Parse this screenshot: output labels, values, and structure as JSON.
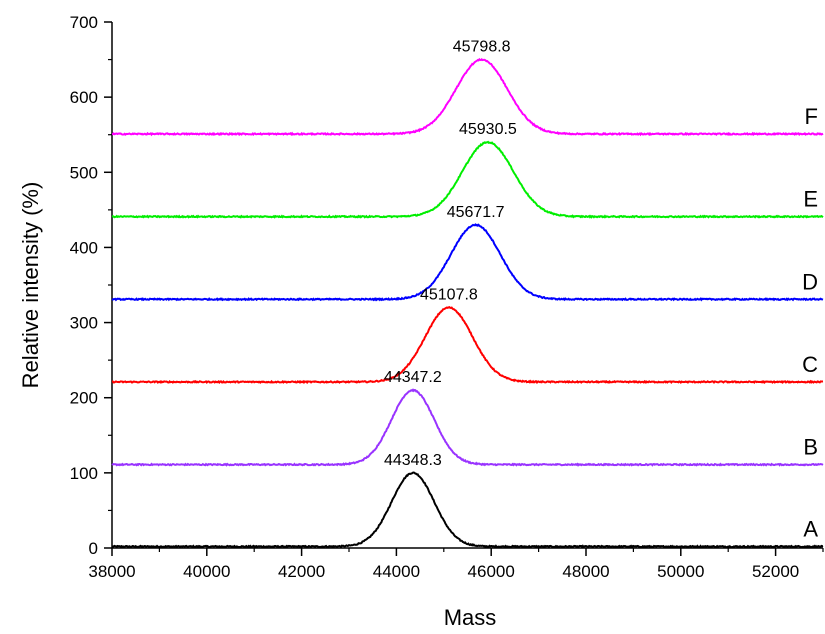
{
  "chart_data": {
    "type": "line",
    "title": "",
    "xlabel": "Mass",
    "ylabel": "Relative intensity (%)",
    "xlim": [
      38000,
      53000
    ],
    "ylim": [
      0,
      700
    ],
    "x_ticks": [
      38000,
      40000,
      42000,
      44000,
      46000,
      48000,
      50000,
      52000
    ],
    "x_tick_labels": [
      "38000",
      "40000",
      "42000",
      "44000",
      "46000",
      "48000",
      "50000",
      "52000"
    ],
    "y_ticks": [
      0,
      100,
      200,
      300,
      400,
      500,
      600,
      700
    ],
    "y_tick_labels": [
      "0",
      "100",
      "200",
      "300",
      "400",
      "500",
      "600",
      "700"
    ],
    "grid": false,
    "legend": "none",
    "series": [
      {
        "name": "A",
        "color": "#000000",
        "baseline": 2,
        "peak_mass": 44348.3,
        "peak_intensity": 100,
        "peak_label": "44348.3",
        "width_sigma": 450
      },
      {
        "name": "B",
        "color": "#9933ff",
        "baseline": 111,
        "peak_mass": 44347.2,
        "peak_intensity": 210,
        "peak_label": "44347.2",
        "width_sigma": 450
      },
      {
        "name": "C",
        "color": "#ff0000",
        "baseline": 221,
        "peak_mass": 45107.8,
        "peak_intensity": 320,
        "peak_label": "45107.8",
        "width_sigma": 500
      },
      {
        "name": "D",
        "color": "#0000ff",
        "baseline": 331,
        "peak_mass": 45671.7,
        "peak_intensity": 430,
        "peak_label": "45671.7",
        "width_sigma": 520
      },
      {
        "name": "E",
        "color": "#00ee00",
        "baseline": 441,
        "peak_mass": 45930.5,
        "peak_intensity": 540,
        "peak_label": "45930.5",
        "width_sigma": 540
      },
      {
        "name": "F",
        "color": "#ff00ff",
        "baseline": 551,
        "peak_mass": 45798.8,
        "peak_intensity": 650,
        "peak_label": "45798.8",
        "width_sigma": 540
      }
    ]
  }
}
